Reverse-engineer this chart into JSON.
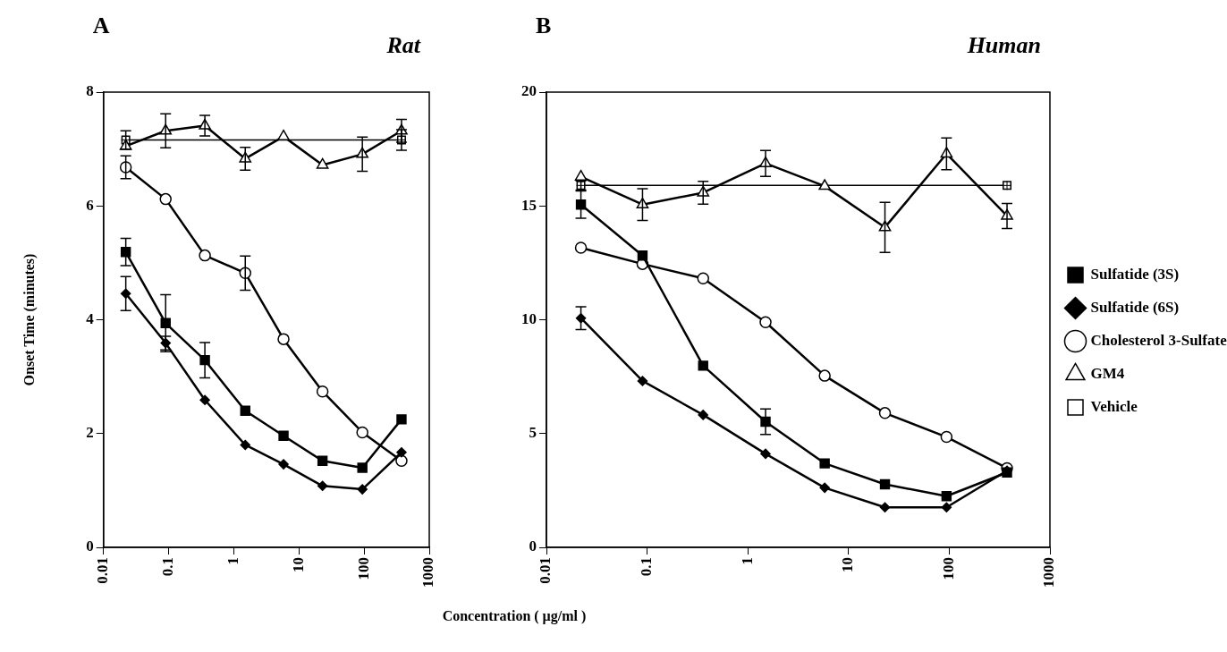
{
  "chart_data": [
    {
      "type": "line",
      "title": "Rat",
      "annotations": [
        "A"
      ],
      "ylabel": "Onset Time (minutes)",
      "xlabel": "Concentration ( µg/ml )",
      "log": "x",
      "xlim": [
        0.01,
        1000
      ],
      "xticks": [
        0.01,
        0.1,
        1,
        10,
        100,
        1000
      ],
      "ylim": [
        0,
        8
      ],
      "yticks": [
        0,
        2,
        4,
        6,
        8
      ],
      "grid": false,
      "legend": false,
      "x": [
        0.022,
        0.09,
        0.36,
        1.5,
        5.8,
        23,
        94,
        375
      ],
      "series": [
        {
          "marker": "square",
          "color": "#000000",
          "values": [
            5.19,
            3.94,
            3.29,
            2.4,
            1.96,
            1.52,
            1.4,
            2.25
          ],
          "errors": [
            0.24,
            0.5,
            0.31,
            null,
            null,
            null,
            null,
            null
          ]
        },
        {
          "marker": "diamond",
          "color": "#000000",
          "values": [
            4.46,
            3.59,
            2.59,
            1.8,
            1.46,
            1.08,
            1.02,
            1.67
          ],
          "errors": [
            0.3,
            0.12,
            null,
            null,
            null,
            null,
            null,
            null
          ]
        },
        {
          "marker": "circle",
          "color": "#000000",
          "values": [
            6.68,
            6.12,
            5.13,
            4.82,
            3.66,
            2.74,
            2.02,
            1.52
          ],
          "errors": [
            0.2,
            null,
            null,
            0.3,
            null,
            null,
            null,
            null
          ]
        },
        {
          "marker": "triangle",
          "color": "#000000",
          "values": [
            7.05,
            7.32,
            7.41,
            6.83,
            7.22,
            6.72,
            6.91,
            7.32
          ],
          "errors": [
            null,
            0.3,
            0.18,
            0.2,
            null,
            null,
            0.3,
            0.2
          ]
        },
        {
          "marker": "square",
          "color": "#000000",
          "values": [
            7.16,
            null,
            null,
            null,
            null,
            null,
            null,
            7.16
          ],
          "errors": [
            0.16,
            null,
            null,
            null,
            null,
            null,
            null,
            0.18
          ]
        }
      ]
    },
    {
      "type": "line",
      "title": "Human",
      "annotations": [
        "B"
      ],
      "log": "x",
      "xlim": [
        0.01,
        1000
      ],
      "xticks": [
        0.01,
        0.1,
        1,
        10,
        100,
        1000
      ],
      "ylim": [
        0,
        20
      ],
      "yticks": [
        0,
        5,
        10,
        15,
        20
      ],
      "grid": false,
      "legend": "right",
      "x": [
        0.022,
        0.09,
        0.36,
        1.5,
        5.8,
        23,
        94,
        375
      ],
      "series": [
        {
          "name": "Sulfatide (3S)",
          "marker": "square",
          "color": "#000000",
          "values": [
            15.06,
            12.82,
            7.98,
            5.52,
            3.69,
            2.77,
            2.25,
            3.29
          ],
          "errors": [
            0.6,
            null,
            null,
            0.56,
            null,
            null,
            null,
            null
          ]
        },
        {
          "name": "Sulfatide (6S)",
          "marker": "diamond",
          "color": "#000000",
          "values": [
            10.07,
            7.31,
            5.82,
            4.11,
            2.62,
            1.76,
            1.76,
            3.37
          ],
          "errors": [
            0.5,
            null,
            null,
            null,
            null,
            null,
            null,
            null
          ]
        },
        {
          "name": "Cholesterol 3-Sulfate",
          "marker": "circle",
          "color": "#000000",
          "values": [
            13.16,
            12.45,
            11.82,
            9.89,
            7.54,
            5.9,
            4.85,
            3.48
          ],
          "errors": [
            null,
            null,
            null,
            null,
            null,
            null,
            null,
            null
          ]
        },
        {
          "name": "GM4",
          "marker": "triangle",
          "color": "#000000",
          "values": [
            16.28,
            15.06,
            15.58,
            16.87,
            15.87,
            14.06,
            17.29,
            14.56
          ],
          "errors": [
            null,
            0.7,
            0.5,
            0.57,
            null,
            1.1,
            0.7,
            0.55
          ]
        },
        {
          "name": "Vehicle",
          "marker": "square",
          "color": "#000000",
          "values": [
            15.9,
            null,
            null,
            null,
            null,
            null,
            null,
            15.9
          ],
          "errors": [
            0.2,
            null,
            null,
            null,
            null,
            null,
            null,
            null
          ]
        }
      ]
    }
  ]
}
